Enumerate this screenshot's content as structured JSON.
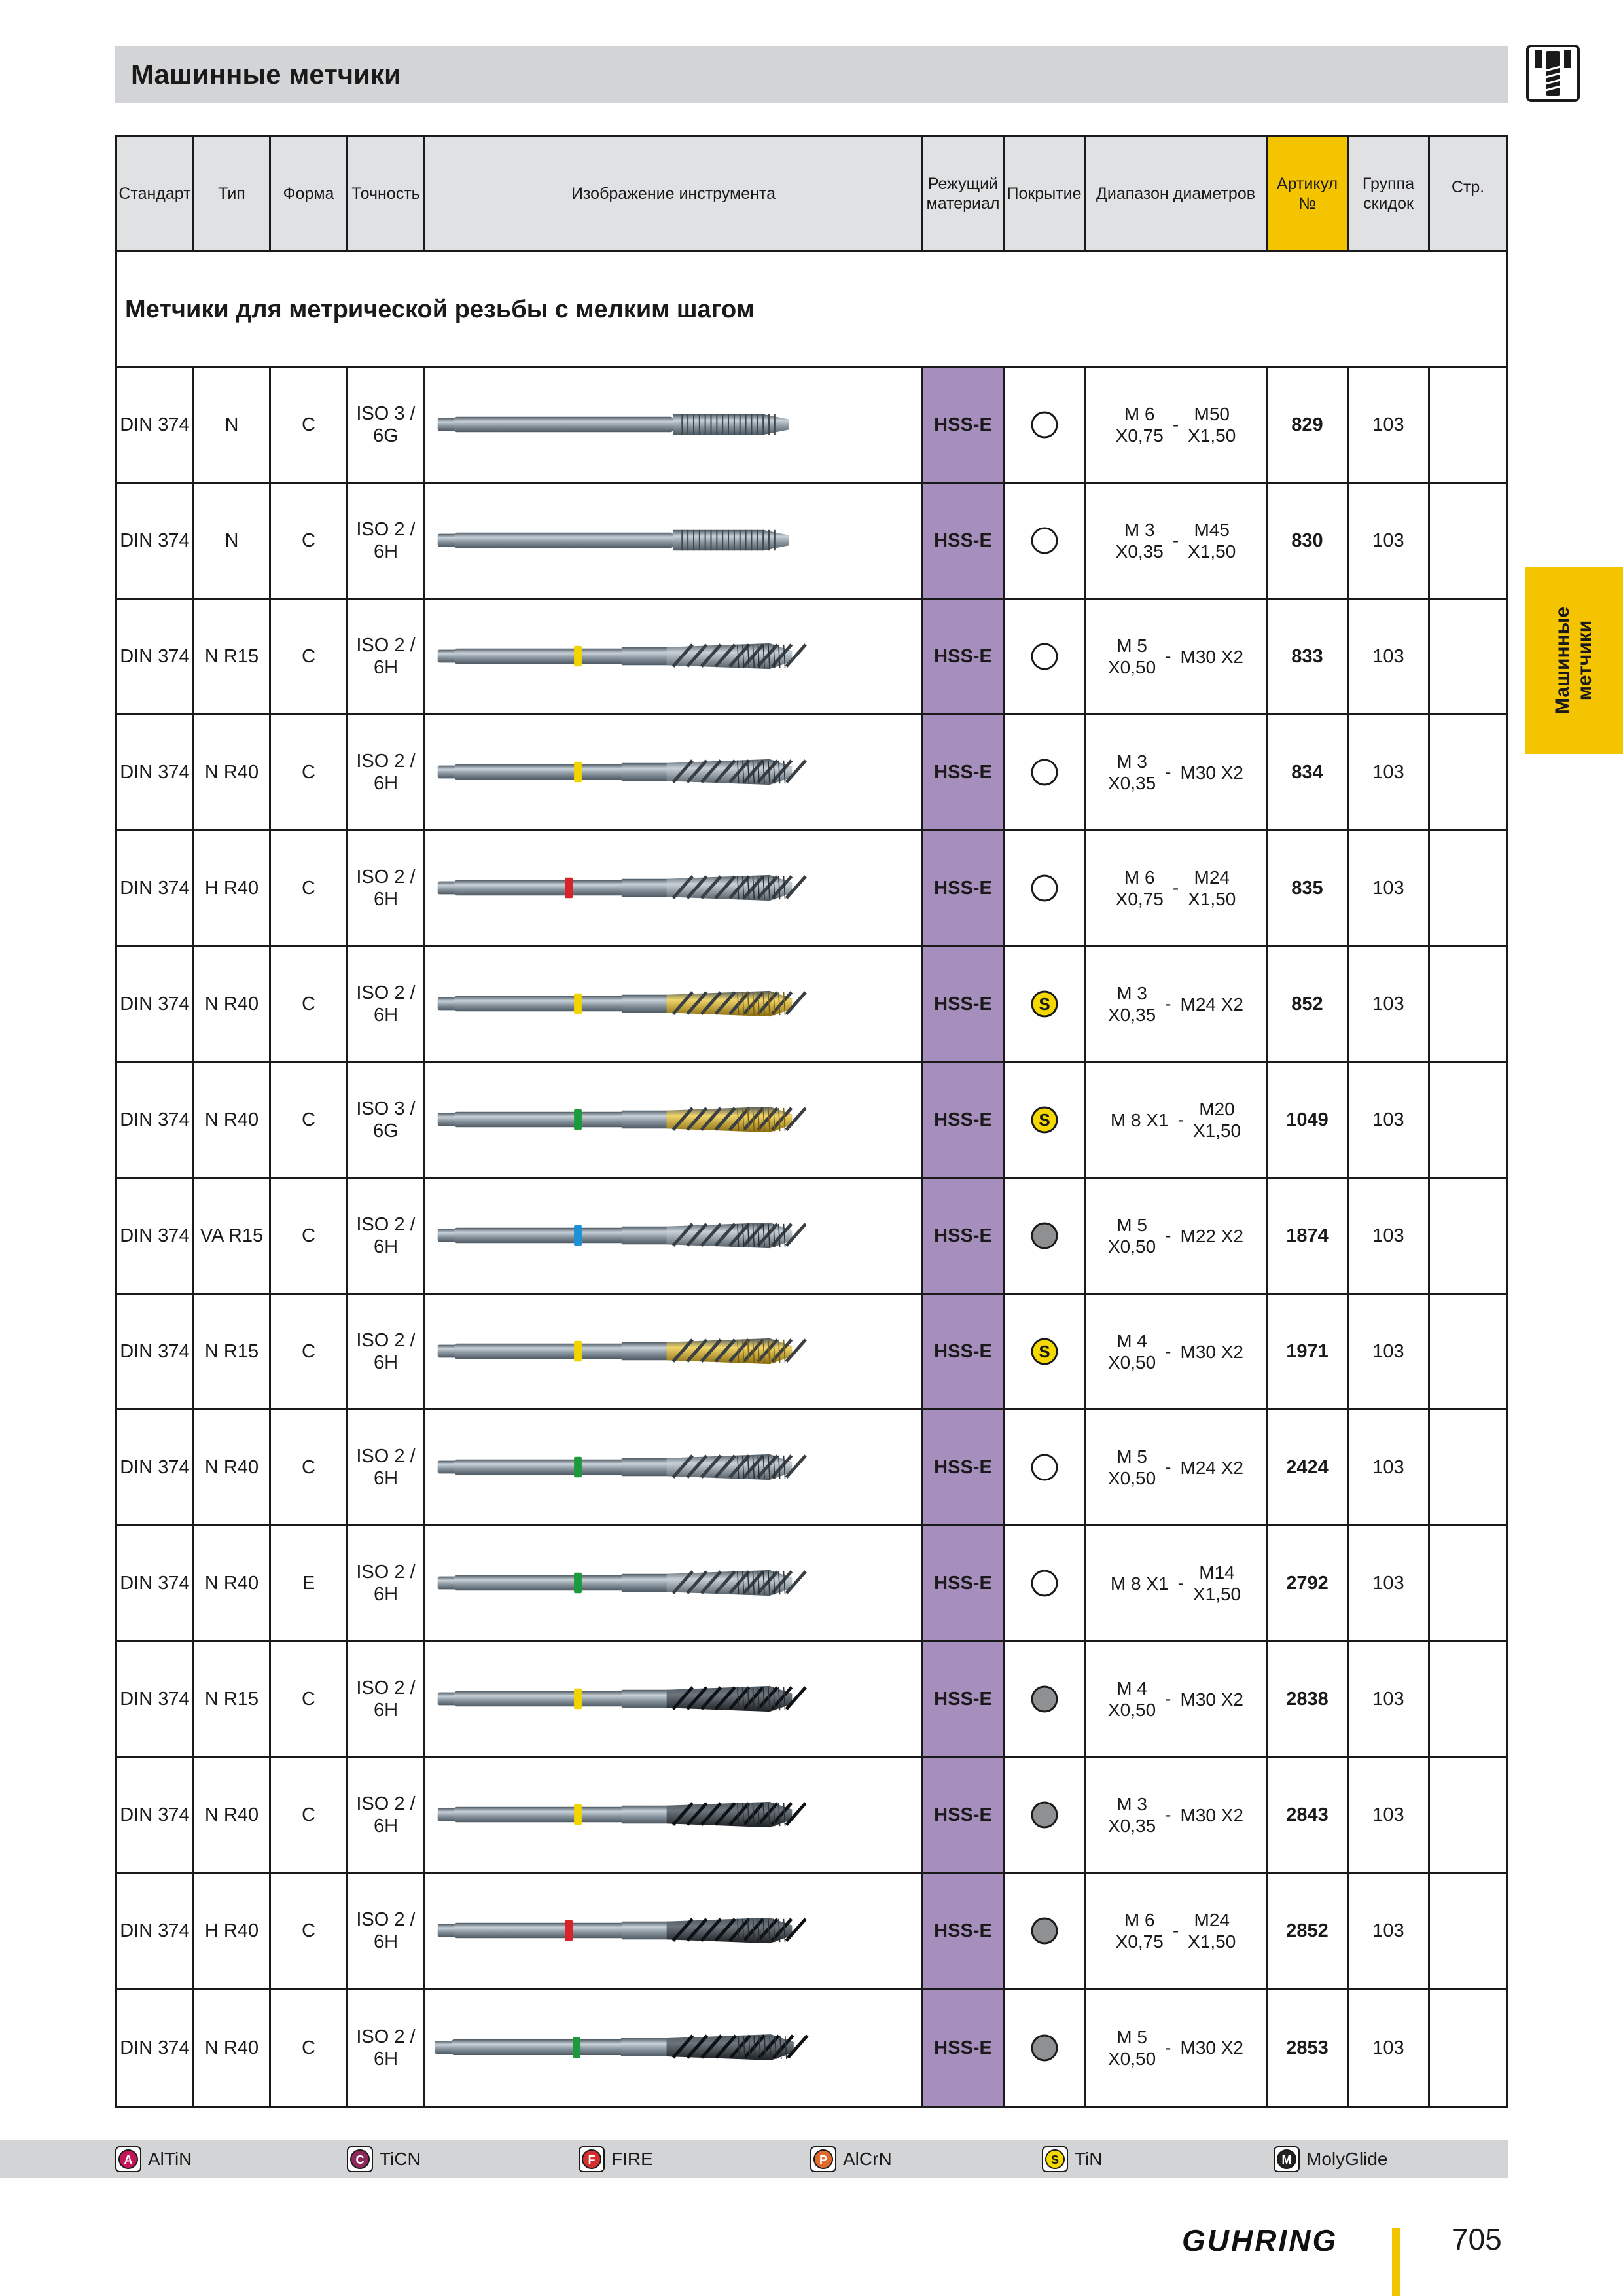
{
  "header": {
    "title": "Машинные метчики"
  },
  "side_tab": {
    "line1": "Машинные",
    "line2": "метчики"
  },
  "table": {
    "headers": {
      "standard": "Стандарт",
      "type": "Тип",
      "form": "Форма",
      "precision": "Точность",
      "image": "Изображение инструмента",
      "material": "Режущий материал",
      "coating": "Покрытие",
      "diameter": "Диапазон диаметров",
      "article": "Артикул №",
      "discount": "Группа скидок",
      "page": "Стр."
    },
    "section_title": "Метчики для метрической резьбы с мелким шагом",
    "rows": [
      {
        "standard": "DIN 374",
        "type": "N",
        "form": "C",
        "precision_1": "ISO 3 /",
        "precision_2": "6G",
        "material": "HSS-E",
        "coating": "none",
        "dia_lo_1": "M 6",
        "dia_lo_2": "X0,75",
        "sep": "-",
        "dia_hi_1": "M50",
        "dia_hi_2": "X1,50",
        "article": "829",
        "discount": "103",
        "page": "",
        "ring_color": "",
        "finish": "plain",
        "flute": "straight"
      },
      {
        "standard": "DIN 374",
        "type": "N",
        "form": "C",
        "precision_1": "ISO 2 /",
        "precision_2": "6H",
        "material": "HSS-E",
        "coating": "none",
        "dia_lo_1": "M 3",
        "dia_lo_2": "X0,35",
        "sep": "-",
        "dia_hi_1": "M45",
        "dia_hi_2": "X1,50",
        "article": "830",
        "discount": "103",
        "page": "",
        "ring_color": "",
        "finish": "plain",
        "flute": "straight"
      },
      {
        "standard": "DIN 374",
        "type": "N R15",
        "form": "C",
        "precision_1": "ISO 2 /",
        "precision_2": "6H",
        "material": "HSS-E",
        "coating": "none",
        "dia_lo_1": "M 5",
        "dia_lo_2": "X0,50",
        "sep": "-",
        "dia_hi_1": "M30 X2",
        "dia_hi_2": "",
        "article": "833",
        "discount": "103",
        "page": "",
        "ring_color": "#f2d500",
        "finish": "plain",
        "flute": "spiral"
      },
      {
        "standard": "DIN 374",
        "type": "N R40",
        "form": "C",
        "precision_1": "ISO 2 /",
        "precision_2": "6H",
        "material": "HSS-E",
        "coating": "none",
        "dia_lo_1": "M 3",
        "dia_lo_2": "X0,35",
        "sep": "-",
        "dia_hi_1": "M30 X2",
        "dia_hi_2": "",
        "article": "834",
        "discount": "103",
        "page": "",
        "ring_color": "#f2d500",
        "finish": "plain",
        "flute": "spiral"
      },
      {
        "standard": "DIN 374",
        "type": "H R40",
        "form": "C",
        "precision_1": "ISO 2 /",
        "precision_2": "6H",
        "material": "HSS-E",
        "coating": "none",
        "dia_lo_1": "M 6",
        "dia_lo_2": "X0,75",
        "sep": "-",
        "dia_hi_1": "M24",
        "dia_hi_2": "X1,50",
        "article": "835",
        "discount": "103",
        "page": "",
        "ring_color": "#d8232a",
        "finish": "plain",
        "flute": "spiral"
      },
      {
        "standard": "DIN 374",
        "type": "N R40",
        "form": "C",
        "precision_1": "ISO 2 /",
        "precision_2": "6H",
        "material": "HSS-E",
        "coating": "TiN",
        "dia_lo_1": "M 3",
        "dia_lo_2": "X0,35",
        "sep": "-",
        "dia_hi_1": "M24 X2",
        "dia_hi_2": "",
        "article": "852",
        "discount": "103",
        "page": "",
        "ring_color": "#f2d500",
        "finish": "gold",
        "flute": "spiral"
      },
      {
        "standard": "DIN 374",
        "type": "N R40",
        "form": "C",
        "precision_1": "ISO 3 /",
        "precision_2": "6G",
        "material": "HSS-E",
        "coating": "TiN",
        "dia_lo_1": "M 8 X1",
        "dia_lo_2": "",
        "sep": "-",
        "dia_hi_1": "M20",
        "dia_hi_2": "X1,50",
        "article": "1049",
        "discount": "103",
        "page": "",
        "ring_color": "#1d9a3c",
        "finish": "gold",
        "flute": "spiral"
      },
      {
        "standard": "DIN 374",
        "type": "VA R15",
        "form": "C",
        "precision_1": "ISO 2 /",
        "precision_2": "6H",
        "material": "HSS-E",
        "coating": "gray",
        "dia_lo_1": "M 5",
        "dia_lo_2": "X0,50",
        "sep": "-",
        "dia_hi_1": "M22 X2",
        "dia_hi_2": "",
        "article": "1874",
        "discount": "103",
        "page": "",
        "ring_color": "#1e90d6",
        "finish": "plain",
        "flute": "spiral"
      },
      {
        "standard": "DIN 374",
        "type": "N R15",
        "form": "C",
        "precision_1": "ISO 2 /",
        "precision_2": "6H",
        "material": "HSS-E",
        "coating": "TiN",
        "dia_lo_1": "M 4",
        "dia_lo_2": "X0,50",
        "sep": "-",
        "dia_hi_1": "M30 X2",
        "dia_hi_2": "",
        "article": "1971",
        "discount": "103",
        "page": "",
        "ring_color": "#f2d500",
        "finish": "gold",
        "flute": "spiral"
      },
      {
        "standard": "DIN 374",
        "type": "N R40",
        "form": "C",
        "precision_1": "ISO 2 /",
        "precision_2": "6H",
        "material": "HSS-E",
        "coating": "none",
        "dia_lo_1": "M 5",
        "dia_lo_2": "X0,50",
        "sep": "-",
        "dia_hi_1": "M24 X2",
        "dia_hi_2": "",
        "article": "2424",
        "discount": "103",
        "page": "",
        "ring_color": "#1d9a3c",
        "finish": "plain",
        "flute": "spiral"
      },
      {
        "standard": "DIN 374",
        "type": "N R40",
        "form": "E",
        "precision_1": "ISO 2 /",
        "precision_2": "6H",
        "material": "HSS-E",
        "coating": "none",
        "dia_lo_1": "M 8 X1",
        "dia_lo_2": "",
        "sep": "-",
        "dia_hi_1": "M14",
        "dia_hi_2": "X1,50",
        "article": "2792",
        "discount": "103",
        "page": "",
        "ring_color": "#1d9a3c",
        "finish": "plain",
        "flute": "spiral"
      },
      {
        "standard": "DIN 374",
        "type": "N R15",
        "form": "C",
        "precision_1": "ISO 2 /",
        "precision_2": "6H",
        "material": "HSS-E",
        "coating": "gray",
        "dia_lo_1": "M 4",
        "dia_lo_2": "X0,50",
        "sep": "-",
        "dia_hi_1": "M30 X2",
        "dia_hi_2": "",
        "article": "2838",
        "discount": "103",
        "page": "",
        "ring_color": "#f2d500",
        "finish": "dark",
        "flute": "spiral"
      },
      {
        "standard": "DIN 374",
        "type": "N R40",
        "form": "C",
        "precision_1": "ISO 2 /",
        "precision_2": "6H",
        "material": "HSS-E",
        "coating": "gray",
        "dia_lo_1": "M 3",
        "dia_lo_2": "X0,35",
        "sep": "-",
        "dia_hi_1": "M30 X2",
        "dia_hi_2": "",
        "article": "2843",
        "discount": "103",
        "page": "",
        "ring_color": "#f2d500",
        "finish": "dark",
        "flute": "spiral"
      },
      {
        "standard": "DIN 374",
        "type": "H R40",
        "form": "C",
        "precision_1": "ISO 2 /",
        "precision_2": "6H",
        "material": "HSS-E",
        "coating": "gray",
        "dia_lo_1": "M 6",
        "dia_lo_2": "X0,75",
        "sep": "-",
        "dia_hi_1": "M24",
        "dia_hi_2": "X1,50",
        "article": "2852",
        "discount": "103",
        "page": "",
        "ring_color": "#d8232a",
        "finish": "dark",
        "flute": "spiral"
      },
      {
        "standard": "DIN 374",
        "type": "N R40",
        "form": "C",
        "precision_1": "ISO 2 /",
        "precision_2": "6H",
        "material": "HSS-E",
        "coating": "gray",
        "dia_lo_1": "M 5",
        "dia_lo_2": "X0,50",
        "sep": "-",
        "dia_hi_1": "M30 X2",
        "dia_hi_2": "",
        "article": "2853",
        "discount": "103",
        "page": "",
        "ring_color": "#1d9a3c",
        "finish": "dark",
        "flute": "spiral"
      }
    ]
  },
  "legend": [
    {
      "label": "AlTiN",
      "letter": "A",
      "color": "#c2185b"
    },
    {
      "label": "TiCN",
      "letter": "C",
      "color": "#8e2a5a"
    },
    {
      "label": "FIRE",
      "letter": "F",
      "color": "#d32f2f"
    },
    {
      "label": "AlCrN",
      "letter": "P",
      "color": "#e06a2c"
    },
    {
      "label": "TiN",
      "letter": "S",
      "color": "#f5d800"
    },
    {
      "label": "MolyGlide",
      "letter": "M",
      "color": "#222222"
    }
  ],
  "coating_icon_letter": "S",
  "coating_colors": {
    "TiN": "#f5d800",
    "gray": "#8f9092",
    "none": "#ffffff"
  },
  "footer": {
    "brand": "GUHRING",
    "page_number": "705"
  }
}
